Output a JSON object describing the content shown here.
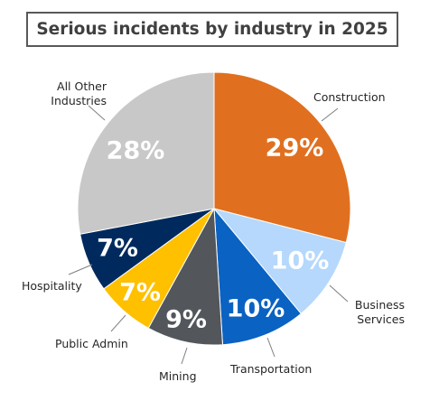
{
  "chart_data": {
    "type": "pie",
    "title": "Serious incidents by industry in 2025",
    "slices": [
      {
        "label": "Construction",
        "value": 29,
        "display": "29%",
        "color": "#E07020",
        "text_color": "#FFFFFF"
      },
      {
        "label": "Business Services",
        "value": 10,
        "display": "10%",
        "color": "#B5D8FC",
        "text_color": "#FFFFFF"
      },
      {
        "label": "Transportation",
        "value": 10,
        "display": "10%",
        "color": "#0A62C2",
        "text_color": "#FFFFFF"
      },
      {
        "label": "Mining",
        "value": 9,
        "display": "9%",
        "color": "#53575B",
        "text_color": "#FFFFFF"
      },
      {
        "label": "Public Admin",
        "value": 7,
        "display": "7%",
        "color": "#FFC000",
        "text_color": "#FFFFFF"
      },
      {
        "label": "Hospitality",
        "value": 7,
        "display": "7%",
        "color": "#002A5E",
        "text_color": "#FFFFFF"
      },
      {
        "label": "All Other Industries",
        "value": 28,
        "display": "28%",
        "color": "#C8C8C8",
        "text_color": "#FFFFFF"
      }
    ],
    "start_angle_deg": 0,
    "direction": "clockwise",
    "legend": "none"
  }
}
